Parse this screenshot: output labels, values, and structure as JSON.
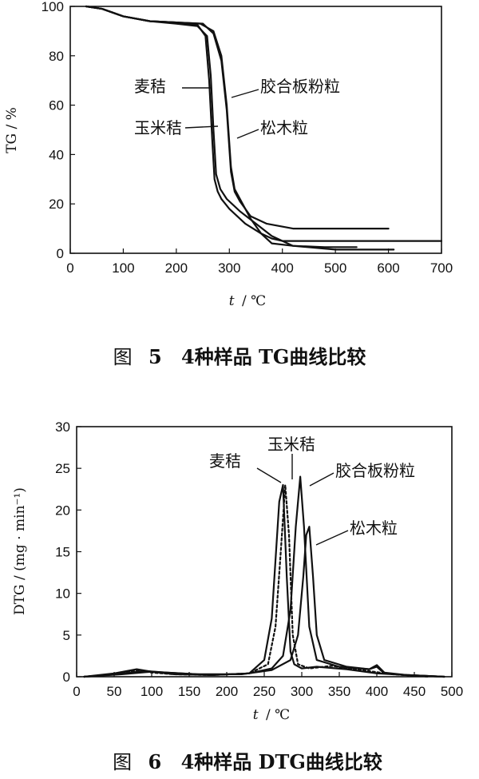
{
  "figures": [
    {
      "caption_prefix": "图",
      "caption_number": "5",
      "caption_text": "4种样品 TG曲线比较"
    },
    {
      "caption_prefix": "图",
      "caption_number": "6",
      "caption_text": "4种样品 DTG曲线比较"
    }
  ],
  "chart_data": [
    {
      "type": "line",
      "ylabel": "TG / %",
      "xlabel_italic": "t",
      "xlabel_unit": "/ ℃",
      "xlim": [
        0,
        700
      ],
      "ylim": [
        0,
        100
      ],
      "xticks": [
        0,
        100,
        200,
        300,
        400,
        500,
        600,
        700
      ],
      "yticks": [
        0,
        20,
        40,
        60,
        80,
        100
      ],
      "series": [
        {
          "name": "麦秸",
          "x": [
            30,
            60,
            100,
            150,
            200,
            240,
            255,
            262,
            268,
            272,
            278,
            285,
            300,
            330,
            360,
            380,
            420,
            480,
            540
          ],
          "y": [
            100,
            99,
            96,
            94,
            93.5,
            92.5,
            88,
            70,
            45,
            30,
            25,
            22,
            18,
            12,
            8,
            4,
            3,
            2.5,
            2.5
          ]
        },
        {
          "name": "玉米秸",
          "x": [
            30,
            60,
            100,
            150,
            200,
            240,
            258,
            265,
            270,
            275,
            283,
            295,
            320,
            350,
            380,
            420,
            500,
            610
          ],
          "y": [
            100,
            99,
            96,
            94,
            93,
            92,
            88,
            72,
            50,
            32,
            26,
            22,
            17,
            12,
            7,
            3,
            1.5,
            1.5
          ]
        },
        {
          "name": "胶合板粉粒",
          "x": [
            30,
            60,
            100,
            150,
            200,
            245,
            270,
            285,
            295,
            303,
            310,
            320,
            340,
            360,
            380,
            400,
            500,
            600,
            700
          ],
          "y": [
            100,
            99,
            96,
            94,
            93.5,
            93,
            90,
            80,
            60,
            35,
            26,
            22,
            14,
            8,
            6,
            5,
            5,
            5,
            5
          ]
        },
        {
          "name": "松木粒",
          "x": [
            30,
            60,
            100,
            150,
            200,
            250,
            270,
            285,
            295,
            303,
            310,
            320,
            340,
            370,
            420,
            500,
            600
          ],
          "y": [
            100,
            99,
            96,
            94,
            93.5,
            93,
            89,
            78,
            58,
            33,
            25,
            21,
            15,
            12,
            10,
            10,
            10
          ]
        }
      ]
    },
    {
      "type": "line",
      "ylabel": "DTG / (mg · min⁻¹)",
      "xlabel_italic": "t",
      "xlabel_unit": "/ ℃",
      "xlim": [
        0,
        500
      ],
      "ylim": [
        0,
        30
      ],
      "xticks": [
        0,
        50,
        100,
        150,
        200,
        250,
        300,
        350,
        400,
        450,
        500
      ],
      "yticks": [
        0,
        5,
        10,
        15,
        20,
        25,
        30
      ],
      "series": [
        {
          "name": "麦秸",
          "x": [
            10,
            50,
            80,
            100,
            130,
            180,
            230,
            250,
            260,
            265,
            270,
            275,
            280,
            285,
            290,
            300,
            320,
            360,
            400,
            440,
            490
          ],
          "y": [
            0,
            0.4,
            0.9,
            0.6,
            0.3,
            0.2,
            0.4,
            2,
            7,
            14,
            21,
            23,
            12,
            3,
            1.5,
            1,
            1.2,
            0.9,
            0.4,
            0.2,
            0
          ]
        },
        {
          "name": "玉米秸",
          "x": [
            10,
            50,
            80,
            100,
            130,
            180,
            230,
            255,
            265,
            272,
            278,
            283,
            288,
            295,
            310,
            340,
            380,
            420,
            470
          ],
          "y": [
            0,
            0.3,
            0.8,
            0.5,
            0.3,
            0.2,
            0.4,
            1.5,
            6,
            15,
            23,
            17,
            5,
            1.5,
            1,
            1.3,
            0.8,
            0.3,
            0
          ]
        },
        {
          "name": "胶合板粉粒",
          "x": [
            10,
            50,
            90,
            120,
            180,
            230,
            260,
            275,
            285,
            292,
            298,
            303,
            310,
            320,
            350,
            390,
            400,
            410,
            440,
            490
          ],
          "y": [
            0,
            0.3,
            0.7,
            0.5,
            0.2,
            0.4,
            1,
            2.5,
            8,
            18,
            24,
            18,
            6,
            2,
            1.2,
            0.9,
            1.4,
            0.5,
            0.2,
            0
          ]
        },
        {
          "name": "松木粒",
          "x": [
            10,
            60,
            100,
            160,
            220,
            260,
            285,
            295,
            302,
            306,
            310,
            315,
            320,
            330,
            360,
            390,
            400,
            410,
            440,
            490
          ],
          "y": [
            0,
            0.3,
            0.6,
            0.3,
            0.3,
            0.8,
            2,
            5,
            12,
            17,
            18,
            12,
            5,
            2,
            1.2,
            0.9,
            1.2,
            0.4,
            0.2,
            0
          ]
        }
      ]
    }
  ]
}
